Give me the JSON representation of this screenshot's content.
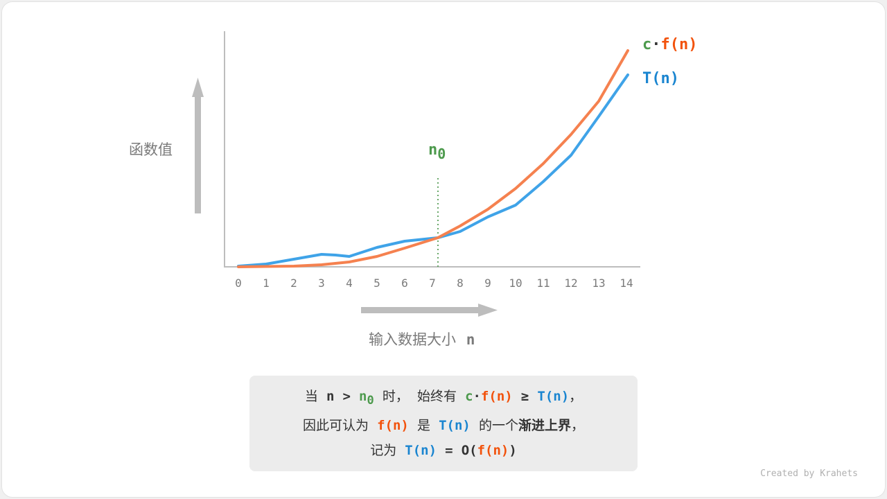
{
  "y_axis_label": "函数值",
  "x_axis_label": "输入数据大小",
  "x_axis_var": "n",
  "x_ticks": [
    "0",
    "1",
    "2",
    "3",
    "4",
    "5",
    "6",
    "7",
    "8",
    "9",
    "10",
    "11",
    "12",
    "13",
    "14"
  ],
  "n0_label": {
    "base": "n",
    "sub": "0"
  },
  "legend": {
    "cf": {
      "c": "c",
      "dot": "·",
      "f": "f(n)"
    },
    "t": "T(n)"
  },
  "colors": {
    "cf": "#f5814f",
    "t": "#3fa3e8",
    "n0": "#4d9a4d",
    "axis": "#bdbdbd"
  },
  "caption": {
    "line1": [
      "当",
      "n",
      ">",
      "n",
      "0",
      "时，",
      "始终有",
      "c",
      "·",
      "f(n)",
      "≥",
      "T(n)",
      "，"
    ],
    "line2": [
      "因此可认为",
      "f(n)",
      "是",
      "T(n)",
      "的一个",
      "渐进上界",
      "，"
    ],
    "line3": [
      "记为",
      "T(n)",
      "=",
      "O(",
      "f(n)",
      ")"
    ]
  },
  "credit": "Created by Krahets"
}
